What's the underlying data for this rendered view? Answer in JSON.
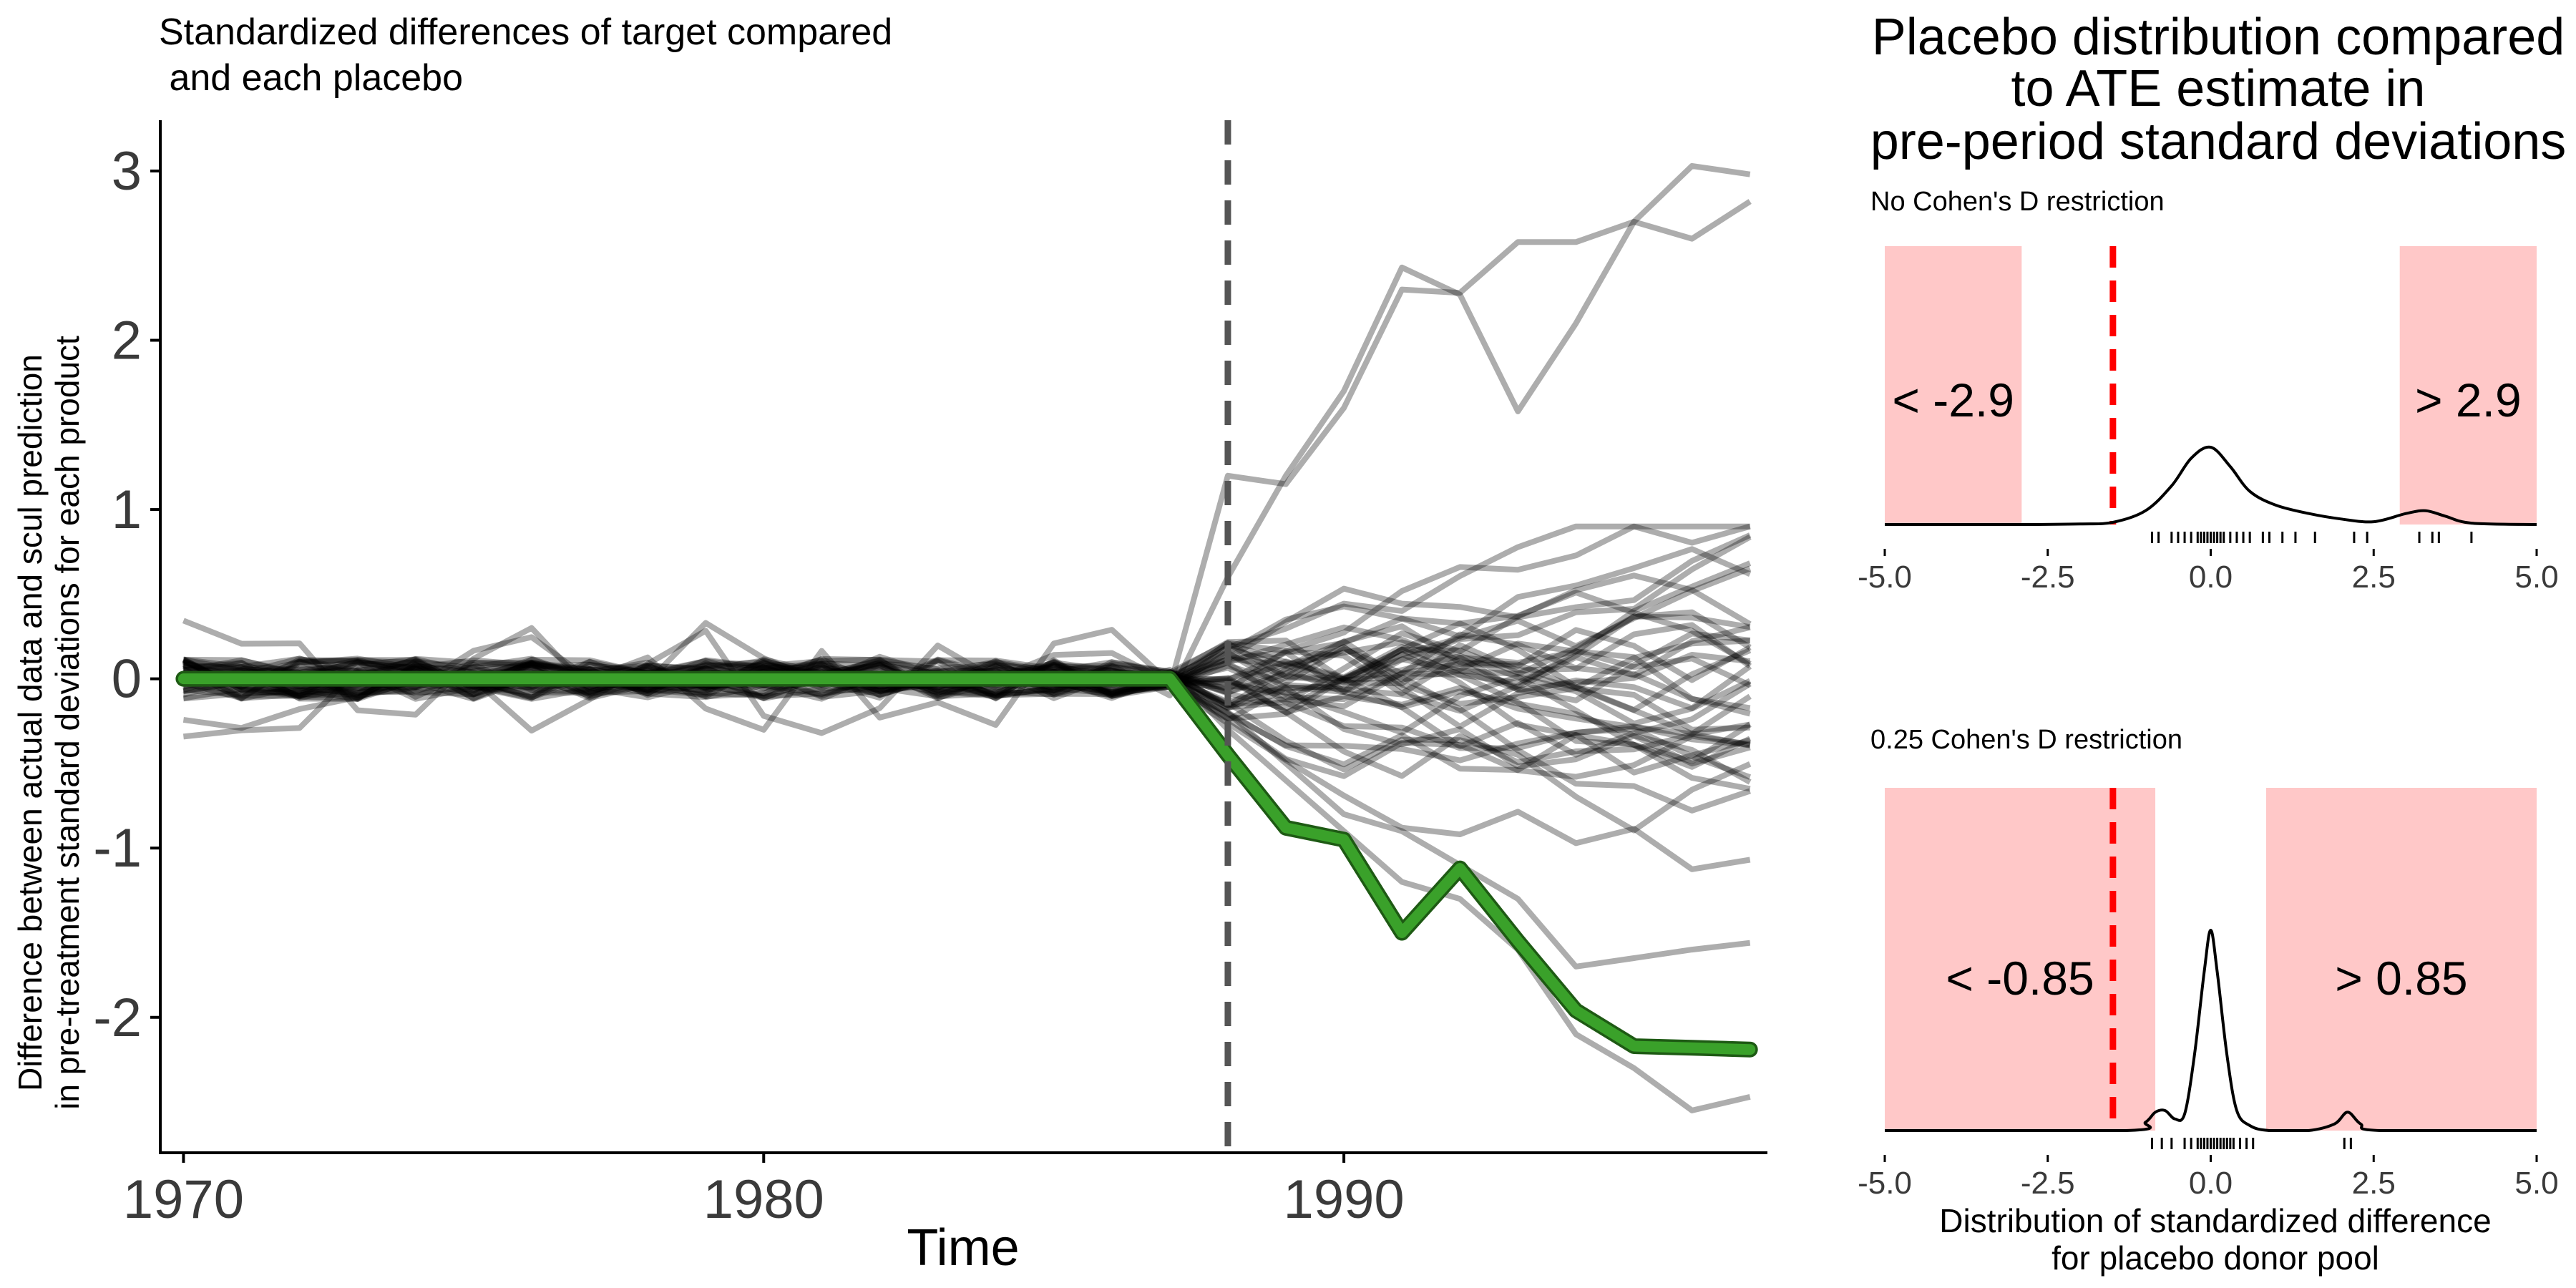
{
  "colors": {
    "placebo_line": "#000000",
    "target_line": "#3aa12a",
    "target_outline": "#1e5a14",
    "treatment_line": "#555555",
    "estimate_line": "#ff0000",
    "region_fill": "#ffc8c8",
    "axis": "#000000"
  },
  "main_chart": {
    "title_line1": "Standardized differences of target compared",
    "title_line2": " and each placebo",
    "ylabel_line1": "Difference between actual data and scul prediction",
    "ylabel_line2": "in pre-treatment standard deviations for each product",
    "xlabel": "Time",
    "x_ticks": [
      1970,
      1980,
      1990
    ],
    "y_ticks": [
      -2,
      -1,
      0,
      1,
      2,
      3
    ],
    "y_tick_labels": [
      "-2",
      "-1",
      "0",
      "1",
      "2",
      "3"
    ]
  },
  "side_panel": {
    "title_line1": "Placebo distribution compared",
    "title_line2": "to ATE estimate in",
    "title_line3": "pre-period standard deviations",
    "xlabel_line1": "Distribution of standardized difference",
    "xlabel_line2": "for placebo donor pool",
    "x_tick_labels": [
      "-5.0",
      "-2.5",
      "0.0",
      "2.5",
      "5.0"
    ]
  },
  "chart_data": [
    {
      "type": "line",
      "title": "Standardized differences of target compared and each placebo",
      "xlabel": "Time",
      "ylabel": "Difference between actual data and scul prediction in pre-treatment standard deviations for each product",
      "xlim": [
        1969.6,
        1997.3
      ],
      "ylim": [
        -2.8,
        3.3
      ],
      "treatment_time": 1988,
      "years": [
        1970,
        1971,
        1972,
        1973,
        1974,
        1975,
        1976,
        1977,
        1978,
        1979,
        1980,
        1981,
        1982,
        1983,
        1984,
        1985,
        1986,
        1987,
        1988,
        1989,
        1990,
        1991,
        1992,
        1993,
        1994,
        1995,
        1996,
        1997
      ],
      "target": {
        "name": "target",
        "values": [
          0,
          0,
          0,
          0,
          0,
          0,
          0,
          0,
          0,
          0,
          0,
          0,
          0,
          0,
          0,
          0,
          0,
          0,
          -0.45,
          -0.88,
          -0.95,
          -1.5,
          -1.12,
          -1.55,
          -1.96,
          -2.17,
          -2.18,
          -2.19
        ]
      },
      "placebo_count": 40,
      "placebo_highlights": [
        {
          "name": "placebo-high-1",
          "post_values": [
            1.2,
            1.15,
            1.6,
            2.3,
            2.28,
            2.58,
            2.58,
            2.7,
            2.6,
            2.82
          ]
        },
        {
          "name": "placebo-high-2",
          "post_values": [
            0.6,
            1.2,
            1.7,
            2.43,
            2.27,
            1.58,
            2.1,
            2.7,
            3.03,
            2.98
          ]
        },
        {
          "name": "placebo-low-1",
          "post_values": [
            -0.3,
            -0.6,
            -0.9,
            -1.2,
            -1.3,
            -1.6,
            -2.1,
            -2.3,
            -2.55,
            -2.47
          ]
        },
        {
          "name": "placebo-low-2",
          "post_values": [
            -0.2,
            -0.5,
            -0.8,
            -0.9,
            -1.1,
            -1.3,
            -1.7,
            -1.65,
            -1.6,
            -1.56
          ]
        }
      ]
    },
    {
      "type": "area",
      "title": "No Cohen's D restriction",
      "xlim": [
        -5.0,
        5.0
      ],
      "threshold": 2.9,
      "estimate": -1.5,
      "region_labels": [
        "< -2.9",
        "> 2.9"
      ],
      "density_x": [
        -5,
        -3,
        -2,
        -1.5,
        -1,
        -0.6,
        -0.3,
        0,
        0.3,
        0.6,
        1,
        1.5,
        2,
        2.5,
        3,
        3.3,
        3.6,
        4,
        5
      ],
      "density_y": [
        0.0,
        0.0,
        0.002,
        0.008,
        0.05,
        0.14,
        0.24,
        0.28,
        0.21,
        0.12,
        0.07,
        0.04,
        0.02,
        0.01,
        0.04,
        0.05,
        0.03,
        0.005,
        0.0
      ],
      "rug": [
        -0.9,
        -0.8,
        -0.6,
        -0.5,
        -0.4,
        -0.3,
        -0.2,
        -0.15,
        -0.1,
        -0.05,
        0,
        0.05,
        0.1,
        0.15,
        0.2,
        0.3,
        0.4,
        0.5,
        0.6,
        0.8,
        0.9,
        1.1,
        1.3,
        1.6,
        2.2,
        2.4,
        3.2,
        3.4,
        3.5,
        4.0
      ]
    },
    {
      "type": "area",
      "title": "0.25 Cohen's D restriction",
      "xlim": [
        -5.0,
        5.0
      ],
      "threshold": 0.85,
      "estimate": -1.5,
      "region_labels": [
        "< -0.85",
        "> 0.85"
      ],
      "density_x": [
        -5,
        -1.3,
        -1,
        -0.85,
        -0.7,
        -0.55,
        -0.4,
        -0.25,
        -0.1,
        0,
        0.1,
        0.25,
        0.4,
        0.6,
        0.9,
        1.5,
        1.9,
        2.1,
        2.3,
        2.6,
        5
      ],
      "density_y": [
        0.0,
        0.0,
        0.05,
        0.11,
        0.12,
        0.07,
        0.1,
        0.45,
        0.95,
        1.2,
        0.95,
        0.45,
        0.12,
        0.03,
        0.0,
        0.0,
        0.04,
        0.11,
        0.04,
        0.0,
        0.0
      ],
      "rug": [
        -0.9,
        -0.75,
        -0.6,
        -0.4,
        -0.3,
        -0.2,
        -0.15,
        -0.1,
        -0.05,
        0,
        0.05,
        0.1,
        0.15,
        0.2,
        0.25,
        0.3,
        0.35,
        0.45,
        0.55,
        0.65,
        2.05,
        2.15
      ]
    }
  ]
}
